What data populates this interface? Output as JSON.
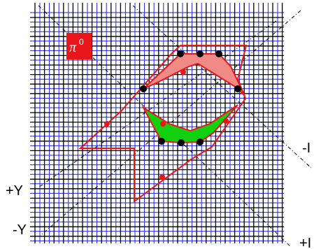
{
  "badge": {
    "symbol": "π",
    "superscript": "0",
    "color": "#e8161b"
  },
  "labels": {
    "plus_y": "+Y",
    "minus_y": "-Y",
    "minus_right": "-I",
    "plus_right": "+I"
  },
  "colors": {
    "black_grid": "#000000",
    "blue_grid": "#1c24d8",
    "outline_red": "#e8161b",
    "upper_fill": "#f08a86",
    "lower_fill": "#10d010",
    "dot_black": "#000000",
    "dot_red": "#e8161b"
  }
}
